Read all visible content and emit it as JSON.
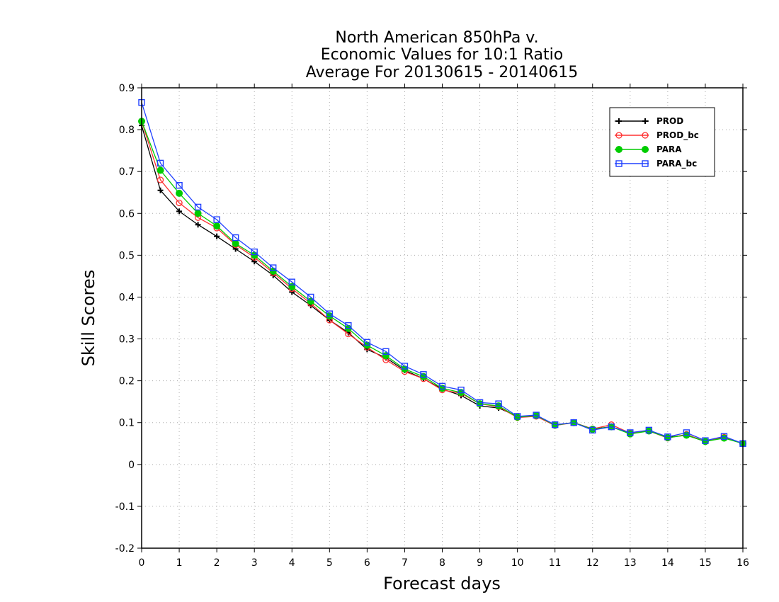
{
  "chart_data": {
    "type": "line",
    "title_lines": [
      "North American 850hPa v.",
      "Economic Values for 10:1 Ratio",
      "Average For 20130615 - 20140615"
    ],
    "xlabel": "Forecast days",
    "ylabel": "Skill Scores",
    "xlim": [
      0,
      16
    ],
    "ylim": [
      -0.2,
      0.9
    ],
    "xticks": [
      0,
      1,
      2,
      3,
      4,
      5,
      6,
      7,
      8,
      9,
      10,
      11,
      12,
      13,
      14,
      15,
      16
    ],
    "yticks": [
      -0.2,
      -0.1,
      0,
      0.1,
      0.2,
      0.3,
      0.4,
      0.5,
      0.6,
      0.7,
      0.8,
      0.9
    ],
    "ytick_labels": [
      "-0.2",
      "-0.1",
      "0",
      "0.1",
      "0.2",
      "0.3",
      "0.4",
      "0.5",
      "0.6",
      "0.7",
      "0.8",
      "0.9"
    ],
    "grid": true,
    "legend_position": "top-right",
    "x": [
      0,
      0.5,
      1,
      1.5,
      2,
      2.5,
      3,
      3.5,
      4,
      4.5,
      5,
      5.5,
      6,
      6.5,
      7,
      7.5,
      8,
      8.5,
      9,
      9.5,
      10,
      10.5,
      11,
      11.5,
      12,
      12.5,
      13,
      13.5,
      14,
      14.5,
      15,
      15.5,
      16
    ],
    "series": [
      {
        "name": "PROD",
        "color": "#000000",
        "marker": "plus",
        "values": [
          0.81,
          0.655,
          0.605,
          0.573,
          0.545,
          0.515,
          0.485,
          0.452,
          0.412,
          0.38,
          0.345,
          0.315,
          0.275,
          0.255,
          0.225,
          0.205,
          0.18,
          0.165,
          0.14,
          0.135,
          0.115,
          0.115,
          0.095,
          0.1,
          0.085,
          0.09,
          0.075,
          0.08,
          0.065,
          0.07,
          0.055,
          0.065,
          0.05
        ]
      },
      {
        "name": "PROD_bc",
        "color": "#ff3030",
        "marker": "open-circle",
        "values": [
          0.82,
          0.68,
          0.625,
          0.59,
          0.565,
          0.525,
          0.495,
          0.458,
          0.42,
          0.385,
          0.345,
          0.312,
          0.28,
          0.25,
          0.222,
          0.205,
          0.178,
          0.17,
          0.145,
          0.138,
          0.112,
          0.115,
          0.093,
          0.1,
          0.085,
          0.095,
          0.075,
          0.08,
          0.063,
          0.072,
          0.055,
          0.065,
          0.05
        ]
      },
      {
        "name": "PARA",
        "color": "#00cc00",
        "marker": "filled-circle",
        "values": [
          0.82,
          0.703,
          0.648,
          0.6,
          0.57,
          0.528,
          0.5,
          0.462,
          0.425,
          0.39,
          0.355,
          0.325,
          0.285,
          0.26,
          0.228,
          0.21,
          0.182,
          0.172,
          0.145,
          0.14,
          0.113,
          0.117,
          0.094,
          0.1,
          0.084,
          0.09,
          0.073,
          0.08,
          0.064,
          0.07,
          0.055,
          0.063,
          0.05
        ]
      },
      {
        "name": "PARA_bc",
        "color": "#2040ff",
        "marker": "open-square",
        "values": [
          0.865,
          0.72,
          0.667,
          0.615,
          0.585,
          0.542,
          0.508,
          0.47,
          0.436,
          0.4,
          0.36,
          0.332,
          0.292,
          0.27,
          0.235,
          0.215,
          0.187,
          0.178,
          0.148,
          0.145,
          0.115,
          0.118,
          0.095,
          0.1,
          0.082,
          0.09,
          0.076,
          0.082,
          0.066,
          0.076,
          0.057,
          0.067,
          0.05
        ]
      }
    ]
  }
}
